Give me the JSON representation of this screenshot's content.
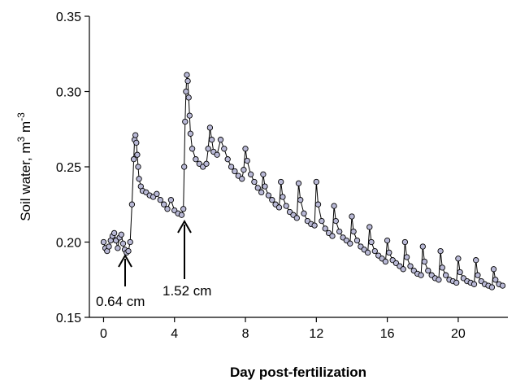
{
  "chart_data": {
    "type": "line",
    "title": "",
    "xlabel": "Day post-fertilization",
    "ylabel": {
      "text": "Soil water,  m",
      "sup1": "3",
      "mid": " m",
      "sup2": "-3"
    },
    "xlim": [
      -0.8,
      22.8
    ],
    "ylim": [
      0.15,
      0.35
    ],
    "xticks": [
      0,
      4,
      8,
      12,
      16,
      20
    ],
    "xtick_labels": [
      "0",
      "4",
      "8",
      "12",
      "16",
      "20"
    ],
    "yticks": [
      0.15,
      0.2,
      0.25,
      0.3,
      0.35
    ],
    "ytick_labels": [
      "0.15",
      "0.20",
      "0.25",
      "0.30",
      "0.35"
    ],
    "grid": false,
    "marker_color": "#b9b9d6",
    "marker_edge": "#000000",
    "series": [
      {
        "x": [
          0,
          0.1,
          0.2,
          0.3,
          0.4,
          0.5,
          0.6,
          0.7,
          0.8,
          0.9,
          1.0,
          1.1,
          1.2,
          1.3,
          1.4,
          1.5,
          1.6,
          1.7,
          1.75,
          1.8,
          1.85,
          1.9,
          1.95,
          2.0,
          2.1,
          2.2,
          2.4,
          2.6,
          2.8,
          3.0,
          3.2,
          3.4,
          3.6,
          3.8,
          4.0,
          4.2,
          4.4,
          4.5,
          4.55,
          4.6,
          4.65,
          4.7,
          4.75,
          4.8,
          4.85,
          4.9,
          5.0,
          5.2,
          5.4,
          5.6,
          5.8,
          5.9,
          6.0,
          6.1,
          6.2,
          6.4,
          6.6,
          6.8,
          7.0,
          7.2,
          7.4,
          7.6,
          7.8,
          7.9,
          8.0,
          8.1,
          8.3,
          8.5,
          8.7,
          8.9,
          9.0,
          9.1,
          9.3,
          9.5,
          9.7,
          9.9,
          10.0,
          10.1,
          10.3,
          10.5,
          10.7,
          10.9,
          11.0,
          11.1,
          11.3,
          11.5,
          11.7,
          11.9,
          12.0,
          12.1,
          12.3,
          12.5,
          12.7,
          12.9,
          13.0,
          13.1,
          13.3,
          13.5,
          13.7,
          13.9,
          14.0,
          14.1,
          14.3,
          14.5,
          14.7,
          14.9,
          15.0,
          15.1,
          15.3,
          15.5,
          15.7,
          15.9,
          16.0,
          16.1,
          16.3,
          16.5,
          16.7,
          16.9,
          17.0,
          17.1,
          17.3,
          17.5,
          17.7,
          17.9,
          18.0,
          18.1,
          18.3,
          18.5,
          18.7,
          18.9,
          19.0,
          19.1,
          19.3,
          19.5,
          19.7,
          19.9,
          20.0,
          20.1,
          20.3,
          20.5,
          20.7,
          20.9,
          21.0,
          21.1,
          21.3,
          21.5,
          21.7,
          21.9,
          22.0,
          22.1,
          22.3,
          22.5
        ],
        "y": [
          0.2,
          0.196,
          0.194,
          0.197,
          0.201,
          0.204,
          0.206,
          0.201,
          0.196,
          0.203,
          0.205,
          0.199,
          0.195,
          0.193,
          0.194,
          0.2,
          0.225,
          0.255,
          0.268,
          0.271,
          0.266,
          0.258,
          0.25,
          0.242,
          0.237,
          0.234,
          0.233,
          0.231,
          0.23,
          0.232,
          0.228,
          0.225,
          0.222,
          0.228,
          0.221,
          0.219,
          0.218,
          0.222,
          0.25,
          0.28,
          0.3,
          0.311,
          0.307,
          0.296,
          0.284,
          0.272,
          0.262,
          0.255,
          0.252,
          0.25,
          0.252,
          0.262,
          0.276,
          0.268,
          0.26,
          0.258,
          0.268,
          0.262,
          0.255,
          0.25,
          0.247,
          0.244,
          0.242,
          0.248,
          0.262,
          0.254,
          0.245,
          0.24,
          0.236,
          0.233,
          0.245,
          0.237,
          0.231,
          0.228,
          0.225,
          0.223,
          0.24,
          0.23,
          0.224,
          0.22,
          0.218,
          0.216,
          0.239,
          0.228,
          0.219,
          0.214,
          0.212,
          0.211,
          0.24,
          0.225,
          0.214,
          0.209,
          0.206,
          0.204,
          0.224,
          0.214,
          0.207,
          0.203,
          0.201,
          0.199,
          0.217,
          0.207,
          0.201,
          0.197,
          0.195,
          0.193,
          0.21,
          0.2,
          0.194,
          0.191,
          0.189,
          0.187,
          0.201,
          0.193,
          0.188,
          0.186,
          0.184,
          0.182,
          0.2,
          0.19,
          0.184,
          0.181,
          0.179,
          0.178,
          0.197,
          0.187,
          0.181,
          0.178,
          0.176,
          0.175,
          0.194,
          0.183,
          0.178,
          0.175,
          0.174,
          0.173,
          0.189,
          0.18,
          0.176,
          0.174,
          0.173,
          0.172,
          0.188,
          0.178,
          0.174,
          0.172,
          0.171,
          0.17,
          0.182,
          0.175,
          0.172,
          0.171
        ]
      }
    ],
    "annotations": [
      {
        "text": "0.64 cm",
        "x": 1.2,
        "y": 0.195
      },
      {
        "text": "1.52 cm",
        "x": 4.6,
        "y": 0.218
      }
    ]
  }
}
